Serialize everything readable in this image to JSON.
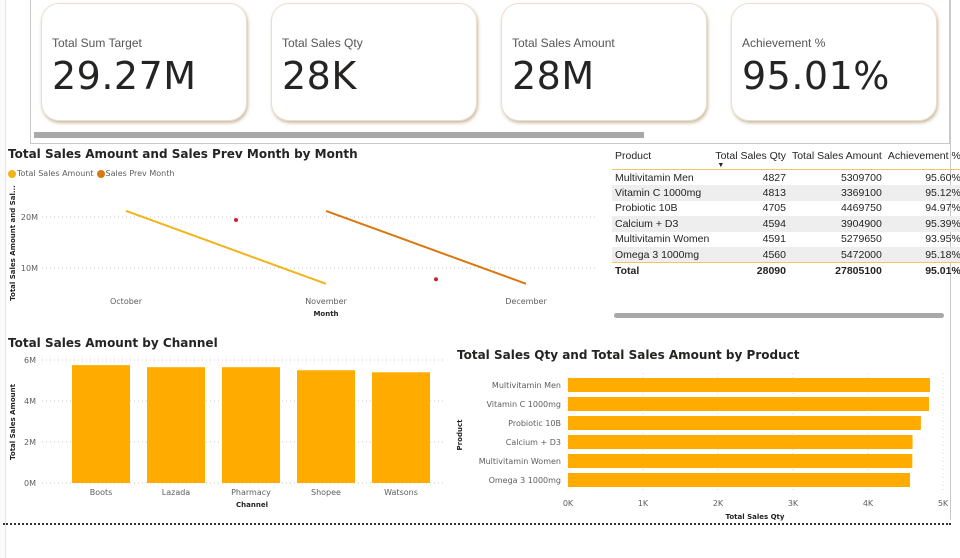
{
  "kpis": [
    {
      "label": "Total Sum Target",
      "value": "29.27M"
    },
    {
      "label": "Total Sales Qty",
      "value": "28K"
    },
    {
      "label": "Total Sales Amount",
      "value": "28M"
    },
    {
      "label": "Achievement %",
      "value": "95.01%"
    }
  ],
  "colors": {
    "accent": "#FFAB00",
    "line_total_sales": "#F2B31B",
    "line_prev_month": "#D9780F",
    "anomaly_dot": "#D0202C",
    "table_rule": "#F0C56A"
  },
  "table": {
    "columns": [
      "Product",
      "Total Sales Qty",
      "Total Sales Amount",
      "Achievement %"
    ],
    "sort_column": "Total Sales Qty",
    "sort_direction": "descending",
    "rows": [
      [
        "Multivitamin Men",
        "4827",
        "5309700",
        "95.60%"
      ],
      [
        "Vitamin C 1000mg",
        "4813",
        "3369100",
        "95.12%"
      ],
      [
        "Probiotic 10B",
        "4705",
        "4469750",
        "94.97%"
      ],
      [
        "Calcium + D3",
        "4594",
        "3904900",
        "95.39%"
      ],
      [
        "Multivitamin Women",
        "4591",
        "5279650",
        "93.95%"
      ],
      [
        "Omega 3 1000mg",
        "4560",
        "5472000",
        "95.18%"
      ]
    ],
    "total": [
      "Total",
      "28090",
      "27805100",
      "95.01%"
    ]
  },
  "chart_data": [
    {
      "type": "line",
      "title": "Total Sales Amount and Sales Prev Month by Month",
      "xlabel": "Month",
      "ylabel": "Total Sales Amount and Sal...",
      "categories": [
        "October",
        "November",
        "December"
      ],
      "yticks": [
        {
          "value": 10000000,
          "label": "10M"
        },
        {
          "value": 20000000,
          "label": "20M"
        }
      ],
      "ylim": [
        0,
        25000000
      ],
      "grid": true,
      "legend_position": "top-left",
      "series": [
        {
          "name": "Total Sales Amount",
          "color": "#F2B31B",
          "values": [
            21200000,
            6900000,
            null
          ]
        },
        {
          "name": "Sales Prev Month",
          "color": "#D9780F",
          "values": [
            null,
            21200000,
            6900000
          ]
        }
      ],
      "anomaly_markers": [
        {
          "x_position": 1.55,
          "value": 19400000
        },
        {
          "x_position": 2.55,
          "value": 7800000
        }
      ]
    },
    {
      "type": "bar",
      "orientation": "vertical",
      "title": "Total Sales Amount by Channel",
      "xlabel": "Channel",
      "ylabel": "Total Sales Amount",
      "categories": [
        "Boots",
        "Lazada",
        "Pharmacy",
        "Shopee",
        "Watsons"
      ],
      "values": [
        5750000,
        5650000,
        5650000,
        5500000,
        5400000
      ],
      "yticks": [
        {
          "value": 0,
          "label": "0M"
        },
        {
          "value": 2000000,
          "label": "2M"
        },
        {
          "value": 4000000,
          "label": "4M"
        },
        {
          "value": 6000000,
          "label": "6M"
        }
      ],
      "ylim": [
        0,
        6000000
      ],
      "grid": true,
      "color": "#FFAB00"
    },
    {
      "type": "bar",
      "orientation": "horizontal",
      "title": "Total Sales Qty and Total Sales Amount by Product",
      "xlabel": "Total Sales Qty",
      "ylabel": "Product",
      "categories": [
        "Multivitamin Men",
        "Vitamin C 1000mg",
        "Probiotic 10B",
        "Calcium + D3",
        "Multivitamin Women",
        "Omega 3 1000mg"
      ],
      "values": [
        4827,
        4813,
        4705,
        4594,
        4591,
        4560
      ],
      "xticks": [
        {
          "value": 0,
          "label": "0K"
        },
        {
          "value": 1000,
          "label": "1K"
        },
        {
          "value": 2000,
          "label": "2K"
        },
        {
          "value": 3000,
          "label": "3K"
        },
        {
          "value": 4000,
          "label": "4K"
        },
        {
          "value": 5000,
          "label": "5K"
        }
      ],
      "xlim": [
        0,
        5000
      ],
      "grid": true,
      "color": "#FFAB00"
    }
  ]
}
